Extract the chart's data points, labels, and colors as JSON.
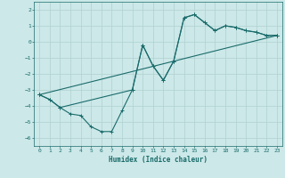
{
  "xlabel": "Humidex (Indice chaleur)",
  "bg_color": "#cce8e8",
  "grid_color": "#b0d0d0",
  "line_color": "#1a6b6b",
  "xlim": [
    -0.5,
    23.5
  ],
  "ylim": [
    -6.5,
    2.5
  ],
  "yticks": [
    -6,
    -5,
    -4,
    -3,
    -2,
    -1,
    0,
    1,
    2
  ],
  "xticks": [
    0,
    1,
    2,
    3,
    4,
    5,
    6,
    7,
    8,
    9,
    10,
    11,
    12,
    13,
    14,
    15,
    16,
    17,
    18,
    19,
    20,
    21,
    22,
    23
  ],
  "series": [
    {
      "x": [
        0,
        1,
        2,
        3,
        4,
        5,
        6,
        7,
        8,
        9,
        10,
        11,
        12,
        13,
        14,
        15,
        16,
        17,
        18,
        19,
        20,
        21,
        22,
        23
      ],
      "y": [
        -3.3,
        -3.6,
        -4.1,
        -4.5,
        -4.6,
        -5.3,
        -5.6,
        -5.6,
        -4.3,
        -3.0,
        -0.2,
        -1.5,
        -2.4,
        -1.2,
        1.5,
        1.7,
        1.2,
        0.7,
        1.0,
        0.9,
        0.7,
        0.6,
        0.4,
        0.4
      ]
    },
    {
      "x": [
        0,
        1,
        2,
        9,
        10,
        11,
        12,
        13,
        14,
        15,
        16,
        17,
        18,
        19,
        20,
        21,
        22,
        23
      ],
      "y": [
        -3.3,
        -3.6,
        -4.1,
        -3.0,
        -0.2,
        -1.5,
        -2.4,
        -1.2,
        1.5,
        1.7,
        1.2,
        0.7,
        1.0,
        0.9,
        0.7,
        0.6,
        0.4,
        0.4
      ]
    },
    {
      "x": [
        0,
        23
      ],
      "y": [
        -3.3,
        0.4
      ]
    }
  ]
}
